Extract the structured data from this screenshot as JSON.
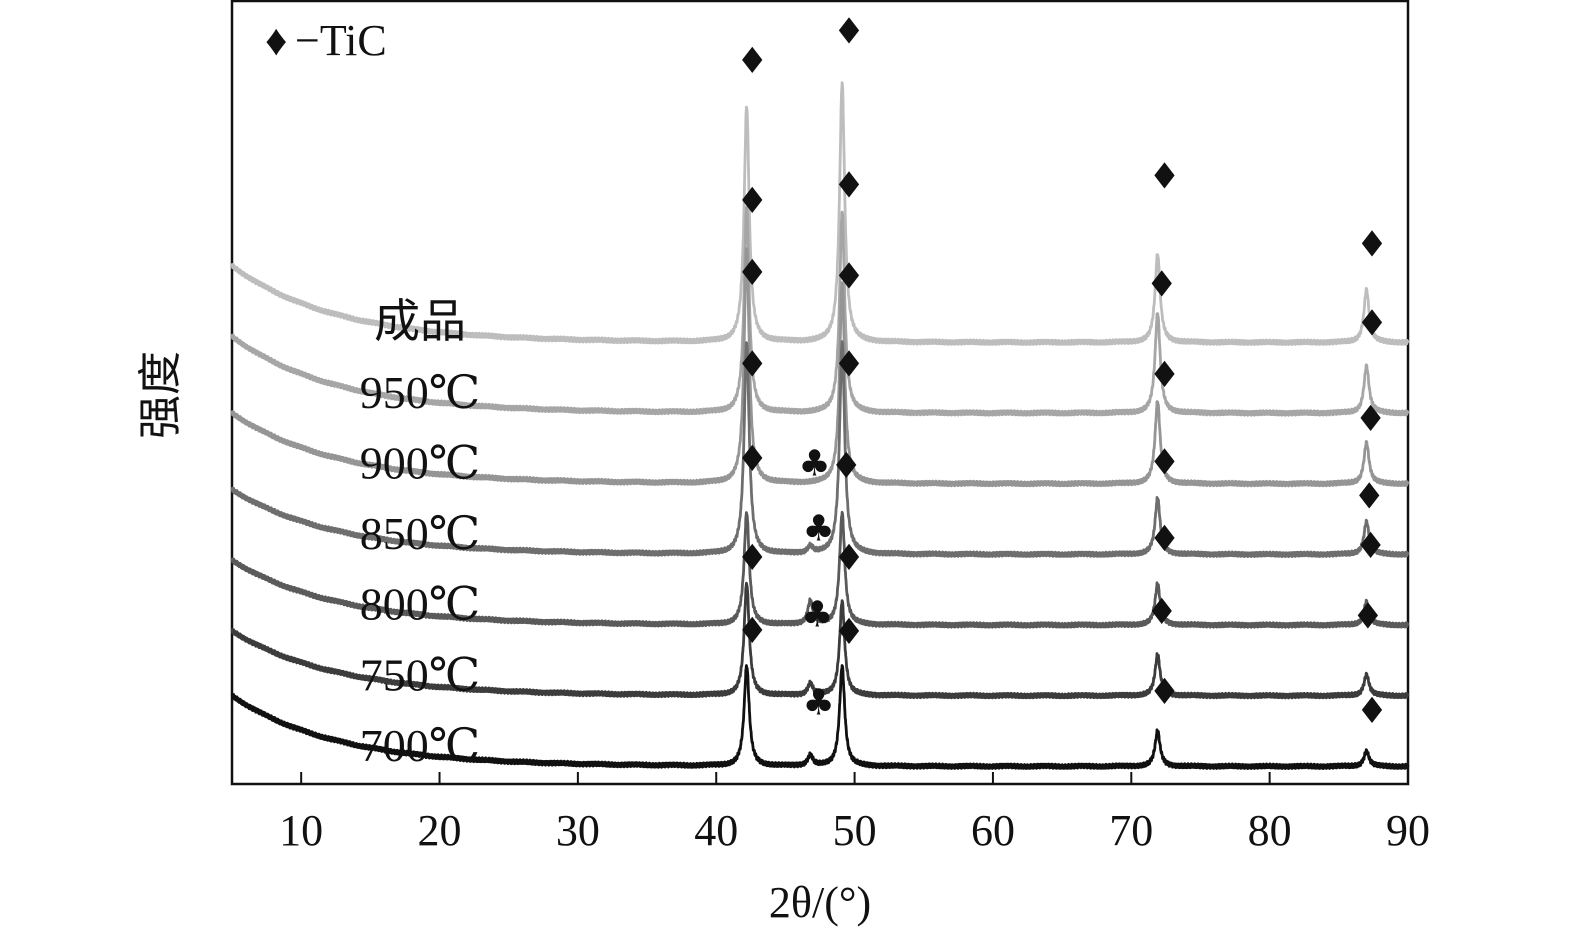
{
  "chart_data": {
    "type": "line",
    "xlabel": "2θ/(°)",
    "ylabel": "强度",
    "xlim": [
      5,
      90
    ],
    "x_ticks": [
      10,
      20,
      30,
      40,
      50,
      60,
      70,
      80,
      90
    ],
    "grid": false,
    "legend": {
      "position": "top-left",
      "entries": [
        {
          "symbol": "♦",
          "label": "−TiC"
        }
      ]
    },
    "series": [
      {
        "name": "成品",
        "color": "#bdbdbd",
        "baseline": 3.6,
        "bg_amp": 0.65,
        "peaks": [
          {
            "x": 42.2,
            "h": 2.0
          },
          {
            "x": 49.1,
            "h": 2.2
          },
          {
            "x": 71.9,
            "h": 0.75
          },
          {
            "x": 87.0,
            "h": 0.45
          }
        ],
        "markers": [
          {
            "x": 42.6,
            "y": 6.0,
            "symbol": "♦"
          },
          {
            "x": 49.6,
            "y": 6.25,
            "symbol": "♦"
          },
          {
            "x": 72.4,
            "y": 5.02,
            "symbol": "♦"
          },
          {
            "x": 87.4,
            "y": 4.44,
            "symbol": "♦"
          }
        ]
      },
      {
        "name": "950℃",
        "color": "#a6a6a6",
        "baseline": 3.0,
        "bg_amp": 0.65,
        "peaks": [
          {
            "x": 42.2,
            "h": 1.75
          },
          {
            "x": 49.1,
            "h": 1.7
          },
          {
            "x": 71.9,
            "h": 0.85
          },
          {
            "x": 87.0,
            "h": 0.4
          }
        ],
        "markers": [
          {
            "x": 42.6,
            "y": 4.81,
            "symbol": "♦"
          },
          {
            "x": 49.6,
            "y": 4.94,
            "symbol": "♦"
          },
          {
            "x": 72.2,
            "y": 4.1,
            "symbol": "♦"
          },
          {
            "x": 87.4,
            "y": 3.77,
            "symbol": "♦"
          }
        ]
      },
      {
        "name": "900℃",
        "color": "#959595",
        "baseline": 2.4,
        "bg_amp": 0.6,
        "peaks": [
          {
            "x": 42.2,
            "h": 2.0
          },
          {
            "x": 49.1,
            "h": 1.7
          },
          {
            "x": 71.9,
            "h": 0.7
          },
          {
            "x": 87.0,
            "h": 0.35
          }
        ],
        "markers": [
          {
            "x": 42.6,
            "y": 4.2,
            "symbol": "♦"
          },
          {
            "x": 49.6,
            "y": 4.17,
            "symbol": "♦"
          },
          {
            "x": 72.4,
            "y": 3.33,
            "symbol": "♦"
          },
          {
            "x": 87.3,
            "y": 2.96,
            "symbol": "♦"
          }
        ]
      },
      {
        "name": "850℃",
        "color": "#6e6e6e",
        "baseline": 1.8,
        "bg_amp": 0.55,
        "peaks": [
          {
            "x": 42.2,
            "h": 1.8
          },
          {
            "x": 49.1,
            "h": 1.8
          },
          {
            "x": 46.8,
            "h": 0.06
          },
          {
            "x": 71.9,
            "h": 0.48
          },
          {
            "x": 87.0,
            "h": 0.28
          }
        ],
        "markers": [
          {
            "x": 42.6,
            "y": 3.42,
            "symbol": "♦"
          },
          {
            "x": 49.6,
            "y": 3.42,
            "symbol": "♦"
          },
          {
            "x": 47.1,
            "y": 2.58,
            "symbol": "♣"
          },
          {
            "x": 72.4,
            "y": 2.59,
            "symbol": "♦"
          },
          {
            "x": 87.2,
            "y": 2.3,
            "symbol": "♦"
          }
        ]
      },
      {
        "name": "800℃",
        "color": "#5a5a5a",
        "baseline": 1.2,
        "bg_amp": 0.55,
        "peaks": [
          {
            "x": 42.2,
            "h": 0.95
          },
          {
            "x": 49.1,
            "h": 0.95
          },
          {
            "x": 46.8,
            "h": 0.2
          },
          {
            "x": 71.9,
            "h": 0.35
          },
          {
            "x": 87.0,
            "h": 0.2
          }
        ],
        "markers": [
          {
            "x": 42.6,
            "y": 2.62,
            "symbol": "♦"
          },
          {
            "x": 49.4,
            "y": 2.56,
            "symbol": "♦"
          },
          {
            "x": 47.4,
            "y": 2.03,
            "symbol": "♣"
          },
          {
            "x": 72.4,
            "y": 1.94,
            "symbol": "♦"
          },
          {
            "x": 87.3,
            "y": 1.88,
            "symbol": "♦"
          }
        ]
      },
      {
        "name": "750℃",
        "color": "#3c3c3c",
        "baseline": 0.6,
        "bg_amp": 0.55,
        "peaks": [
          {
            "x": 42.2,
            "h": 0.95
          },
          {
            "x": 49.1,
            "h": 0.8
          },
          {
            "x": 46.8,
            "h": 0.1
          },
          {
            "x": 71.9,
            "h": 0.35
          },
          {
            "x": 87.0,
            "h": 0.18
          }
        ],
        "markers": [
          {
            "x": 42.6,
            "y": 1.78,
            "symbol": "♦"
          },
          {
            "x": 49.6,
            "y": 1.78,
            "symbol": "♦"
          },
          {
            "x": 47.3,
            "y": 1.3,
            "symbol": "♣"
          },
          {
            "x": 72.2,
            "y": 1.32,
            "symbol": "♦"
          },
          {
            "x": 87.1,
            "y": 1.28,
            "symbol": "♦"
          }
        ]
      },
      {
        "name": "700℃",
        "color": "#111111",
        "baseline": 0.0,
        "bg_amp": 0.6,
        "peaks": [
          {
            "x": 42.2,
            "h": 0.85
          },
          {
            "x": 49.1,
            "h": 0.85
          },
          {
            "x": 46.8,
            "h": 0.09
          },
          {
            "x": 71.9,
            "h": 0.3
          },
          {
            "x": 87.0,
            "h": 0.13
          }
        ],
        "markers": [
          {
            "x": 42.6,
            "y": 1.16,
            "symbol": "♦"
          },
          {
            "x": 49.6,
            "y": 1.15,
            "symbol": "♦"
          },
          {
            "x": 47.4,
            "y": 0.55,
            "symbol": "♣"
          },
          {
            "x": 72.4,
            "y": 0.64,
            "symbol": "♦"
          },
          {
            "x": 87.4,
            "y": 0.48,
            "symbol": "♦"
          }
        ]
      }
    ]
  }
}
